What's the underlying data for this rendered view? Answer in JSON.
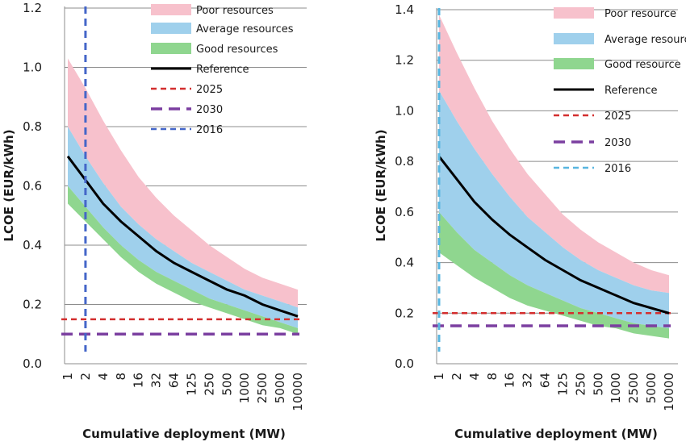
{
  "chart_data": [
    {
      "type": "area",
      "xlabel": "Cumulative deployment (MW)",
      "ylabel": "LCOE (EUR/kWh)",
      "x": [
        "1",
        "2",
        "4",
        "8",
        "16",
        "32",
        "64",
        "125",
        "250",
        "500",
        "1000",
        "2500",
        "5000",
        "10000"
      ],
      "ylim": [
        0,
        1.2
      ],
      "yticks": [
        "0.0",
        "0.2",
        "0.4",
        "0.6",
        "0.8",
        "1.0",
        "1.2"
      ],
      "grid": "horizontal",
      "legend_position": "top-right",
      "bands": [
        {
          "name": "Poor resources",
          "color": "#f7c1cc",
          "lower": [
            0.8,
            0.7,
            0.61,
            0.53,
            0.47,
            0.42,
            0.38,
            0.34,
            0.31,
            0.28,
            0.25,
            0.23,
            0.21,
            0.19
          ],
          "upper": [
            1.03,
            0.93,
            0.82,
            0.72,
            0.63,
            0.56,
            0.5,
            0.45,
            0.4,
            0.36,
            0.32,
            0.29,
            0.27,
            0.25
          ]
        },
        {
          "name": "Average resources",
          "color": "#9fd0ec",
          "lower": [
            0.6,
            0.53,
            0.46,
            0.4,
            0.35,
            0.31,
            0.28,
            0.25,
            0.22,
            0.2,
            0.18,
            0.16,
            0.14,
            0.12
          ],
          "upper": [
            0.8,
            0.7,
            0.61,
            0.53,
            0.47,
            0.42,
            0.38,
            0.34,
            0.31,
            0.28,
            0.25,
            0.23,
            0.21,
            0.19
          ]
        },
        {
          "name": "Good resources",
          "color": "#8fd68f",
          "lower": [
            0.54,
            0.48,
            0.42,
            0.36,
            0.31,
            0.27,
            0.24,
            0.21,
            0.19,
            0.17,
            0.15,
            0.13,
            0.12,
            0.1
          ],
          "upper": [
            0.6,
            0.53,
            0.46,
            0.4,
            0.35,
            0.31,
            0.28,
            0.25,
            0.22,
            0.2,
            0.18,
            0.16,
            0.14,
            0.12
          ]
        }
      ],
      "series": [
        {
          "name": "Reference",
          "color": "#000000",
          "style": "solid",
          "values": [
            0.7,
            0.62,
            0.54,
            0.48,
            0.43,
            0.38,
            0.34,
            0.31,
            0.28,
            0.25,
            0.23,
            0.2,
            0.18,
            0.16
          ]
        }
      ],
      "hlines": [
        {
          "name": "2025",
          "value": 0.15,
          "color": "#d32f2f",
          "style": "dashed"
        },
        {
          "name": "2030",
          "value": 0.1,
          "color": "#7b3fa0",
          "style": "longdash"
        }
      ],
      "vlines": [
        {
          "name": "2016",
          "x": "2",
          "color": "#4466c8",
          "style": "dashed"
        }
      ]
    },
    {
      "type": "area",
      "xlabel": "Cumulative deployment (MW)",
      "ylabel": "LCOE (EUR/kWh)",
      "x": [
        "1",
        "2",
        "4",
        "8",
        "16",
        "32",
        "64",
        "125",
        "250",
        "500",
        "1000",
        "2500",
        "5000",
        "10000"
      ],
      "ylim": [
        0,
        1.4
      ],
      "yticks": [
        "0.0",
        "0.2",
        "0.4",
        "0.6",
        "0.8",
        "1.0",
        "1.2",
        "1.4"
      ],
      "grid": "horizontal",
      "legend_position": "top-right",
      "bands": [
        {
          "name": "Poor resource",
          "color": "#f7c1cc",
          "lower": [
            1.08,
            0.96,
            0.85,
            0.75,
            0.66,
            0.58,
            0.52,
            0.46,
            0.41,
            0.37,
            0.34,
            0.31,
            0.29,
            0.28
          ],
          "upper": [
            1.38,
            1.23,
            1.09,
            0.96,
            0.85,
            0.75,
            0.67,
            0.59,
            0.53,
            0.48,
            0.44,
            0.4,
            0.37,
            0.35
          ]
        },
        {
          "name": "Average resource",
          "color": "#9fd0ec",
          "lower": [
            0.6,
            0.52,
            0.45,
            0.4,
            0.35,
            0.31,
            0.28,
            0.25,
            0.22,
            0.2,
            0.18,
            0.16,
            0.15,
            0.14
          ],
          "upper": [
            1.08,
            0.96,
            0.85,
            0.75,
            0.66,
            0.58,
            0.52,
            0.46,
            0.41,
            0.37,
            0.34,
            0.31,
            0.29,
            0.28
          ]
        },
        {
          "name": "Good resource",
          "color": "#8fd68f",
          "lower": [
            0.44,
            0.39,
            0.34,
            0.3,
            0.26,
            0.23,
            0.21,
            0.19,
            0.17,
            0.15,
            0.14,
            0.12,
            0.11,
            0.1
          ],
          "upper": [
            0.6,
            0.52,
            0.45,
            0.4,
            0.35,
            0.31,
            0.28,
            0.25,
            0.22,
            0.2,
            0.18,
            0.16,
            0.15,
            0.14
          ]
        }
      ],
      "series": [
        {
          "name": "Reference",
          "color": "#000000",
          "style": "solid",
          "values": [
            0.82,
            0.73,
            0.64,
            0.57,
            0.51,
            0.46,
            0.41,
            0.37,
            0.33,
            0.3,
            0.27,
            0.24,
            0.22,
            0.2
          ]
        }
      ],
      "hlines": [
        {
          "name": "2025",
          "value": 0.2,
          "color": "#d32f2f",
          "style": "dashed"
        },
        {
          "name": "2030",
          "value": 0.15,
          "color": "#7b3fa0",
          "style": "longdash"
        }
      ],
      "vlines": [
        {
          "name": "2016",
          "x": "1",
          "color": "#58b6e0",
          "style": "dashed"
        }
      ]
    }
  ]
}
